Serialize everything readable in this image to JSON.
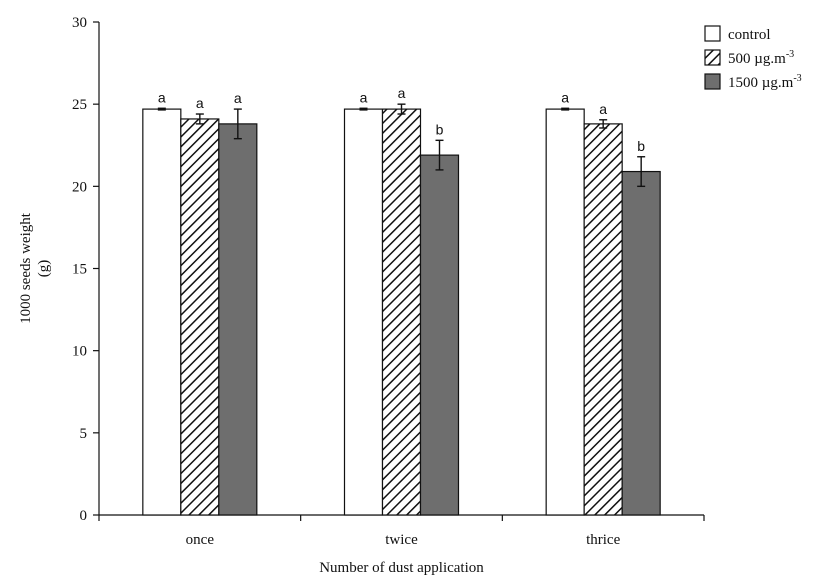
{
  "chart_data": {
    "type": "bar",
    "title": "",
    "xlabel": "Number of dust application",
    "ylabel_line1": "1000 seeds weight",
    "ylabel_line2": "(g)",
    "ylim": [
      0,
      30
    ],
    "yticks": [
      0,
      5,
      10,
      15,
      20,
      25,
      30
    ],
    "categories": [
      "once",
      "twice",
      "thrice"
    ],
    "legend_position": "top-right",
    "series": [
      {
        "name": "control",
        "pattern": "white",
        "values": [
          24.7,
          24.7,
          24.7
        ],
        "errors": [
          0.05,
          0.05,
          0.05
        ],
        "sig": [
          "a",
          "a",
          "a"
        ]
      },
      {
        "name": "500 µg.m-3",
        "name_base": "500 µg.m",
        "name_sup": "-3",
        "pattern": "hatched",
        "values": [
          24.1,
          24.7,
          23.8
        ],
        "errors": [
          0.3,
          0.3,
          0.25
        ],
        "sig": [
          "a",
          "a",
          "a"
        ]
      },
      {
        "name": "1500 µg.m-3",
        "name_base": "1500 µg.m",
        "name_sup": "-3",
        "pattern": "gray",
        "values": [
          23.8,
          21.9,
          20.9
        ],
        "errors": [
          0.9,
          0.9,
          0.9
        ],
        "sig": [
          "a",
          "b",
          "b"
        ]
      }
    ],
    "colors": {
      "control": "#ffffff",
      "gray": "#6e6e6e",
      "stroke": "#111111"
    }
  }
}
